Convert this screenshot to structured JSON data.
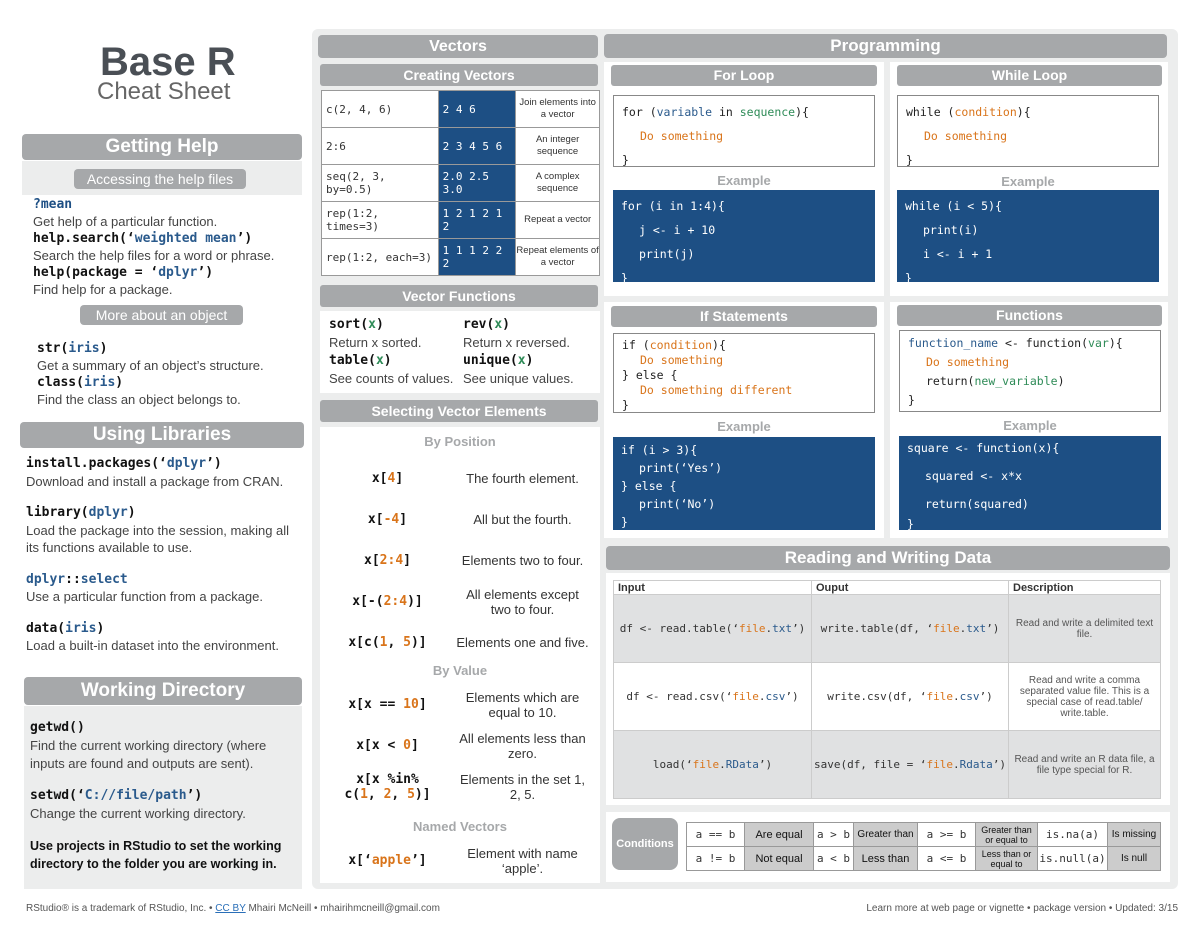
{
  "title": "Base R",
  "subtitle": "Cheat Sheet",
  "help": {
    "header": "Getting Help",
    "sub1": "Accessing the help files",
    "items": [
      {
        "code": "?mean",
        "desc": "Get help of a particular function."
      },
      {
        "code1": "help.search(‘",
        "arg": "weighted mean",
        "code2": "’)",
        "desc": "Search the help files for a word or phrase."
      },
      {
        "code1": "help(package = ‘",
        "arg": "dplyr",
        "code2": "’)",
        "desc": "Find help for a package."
      }
    ],
    "sub2": "More about an object",
    "items2": [
      {
        "code1": "str(",
        "arg": "iris",
        "code2": ")",
        "desc": "Get a summary of an object’s structure."
      },
      {
        "code1": "class(",
        "arg": "iris",
        "code2": ")",
        "desc": "Find the class an object belongs to."
      }
    ]
  },
  "libs": {
    "header": "Using Libraries",
    "items": [
      {
        "code1": "install.packages(‘",
        "arg": "dplyr",
        "code2": "’)",
        "desc": "Download and install a package from CRAN."
      },
      {
        "code1": "library(",
        "arg": "dplyr",
        "code2": ")",
        "desc": "Load the package into the session, making all its functions available to use."
      },
      {
        "code1": "",
        "arg": "dplyr",
        "code2": "::",
        "arg2": "select",
        "desc": "Use a particular function from a package."
      },
      {
        "code1": "data(",
        "arg": "iris",
        "code2": ")",
        "desc": "Load a built-in dataset into the environment."
      }
    ]
  },
  "wd": {
    "header": "Working Directory",
    "items": [
      {
        "code": "getwd()",
        "desc": "Find the current working directory (where inputs are found and outputs are sent)."
      },
      {
        "code1": "setwd(‘",
        "arg": "C://file/path",
        "code2": "’)",
        "desc": "Change the current working directory."
      }
    ],
    "note": "Use projects in RStudio to set the working directory to the folder you are working in."
  },
  "vectors": {
    "header": "Vectors",
    "creating": "Creating Vectors",
    "rows": [
      [
        "c(2, 4, 6)",
        "2 4 6",
        "Join elements into a vector"
      ],
      [
        "2:6",
        "2 3 4 5 6",
        "An integer sequence"
      ],
      [
        "seq(2, 3, by=0.5)",
        "2.0 2.5 3.0",
        "A complex sequence"
      ],
      [
        "rep(1:2, times=3)",
        "1 2 1 2 1 2",
        "Repeat a vector"
      ],
      [
        "rep(1:2, each=3)",
        "1 1 1 2 2 2",
        "Repeat elements of a vector"
      ]
    ],
    "functions": "Vector Functions",
    "fns": [
      {
        "name": "sort",
        "desc": "Return x sorted."
      },
      {
        "name": "rev",
        "desc": "Return x reversed."
      },
      {
        "name": "table",
        "desc": "See counts of values."
      },
      {
        "name": "unique",
        "desc": "See unique values."
      }
    ],
    "selecting": "Selecting Vector Elements",
    "byPosition": "By Position",
    "pos": [
      {
        "code": "x[4]",
        "desc": "The fourth element."
      },
      {
        "code": "x[-4]",
        "desc": "All but the fourth."
      },
      {
        "code": "x[2:4]",
        "desc": "Elements two to four."
      },
      {
        "code": "x[-(2:4)]",
        "desc": "All elements except two to four."
      },
      {
        "code": "x[c(1, 5)]",
        "desc": "Elements one and five."
      }
    ],
    "byValue": "By Value",
    "val": [
      {
        "code": "x[x == 10]",
        "desc": "Elements which are equal to 10."
      },
      {
        "code": "x[x < 0]",
        "desc": "All elements less than zero."
      },
      {
        "code": "x[x %in% c(1, 2, 5)]",
        "desc": "Elements in the set 1, 2, 5."
      }
    ],
    "named": "Named Vectors",
    "namedItem": {
      "code": "x[‘apple’]",
      "desc": "Element with name ‘apple’."
    }
  },
  "prog": {
    "header": "Programming",
    "forLoop": "For Loop",
    "whileLoop": "While Loop",
    "ifStatements": "If Statements",
    "functions": "Functions",
    "example": "Example"
  },
  "rw": {
    "header": "Reading and Writing Data",
    "cols": [
      "Input",
      "Ouput",
      "Description"
    ],
    "rows": [
      [
        "df <- read.table(‘file.txt’)",
        "write.table(df, ‘file.txt’)",
        "Read and write a delimited text file."
      ],
      [
        "df <- read.csv(‘file.csv’)",
        "write.csv(df, ‘file.csv’)",
        "Read and write a comma separated value file. This is a special case of read.table/ write.table."
      ],
      [
        "load(‘file.RData’)",
        "save(df, file = ‘file.Rdata’)",
        "Read and write an R data file, a file type special for R."
      ]
    ]
  },
  "cond": {
    "label": "Conditions",
    "rows": [
      [
        [
          "a == b",
          "Are equal"
        ],
        [
          "a > b",
          "Greater than"
        ],
        [
          "a >= b",
          "Greater than or equal to"
        ],
        [
          "is.na(a)",
          "Is missing"
        ]
      ],
      [
        [
          "a != b",
          "Not equal"
        ],
        [
          "a < b",
          "Less than"
        ],
        [
          "a <= b",
          "Less than or equal to"
        ],
        [
          "is.null(a)",
          "Is null"
        ]
      ]
    ]
  },
  "footer": {
    "left1": "RStudio® is a trademark of RStudio, Inc.  •  ",
    "link": "CC BY",
    "left2": " Mhairi McNeill  •  mhairihmcneill@gmail.com",
    "right": "Learn more at web page or vignette  •  package version  •  Updated: 3/15"
  }
}
